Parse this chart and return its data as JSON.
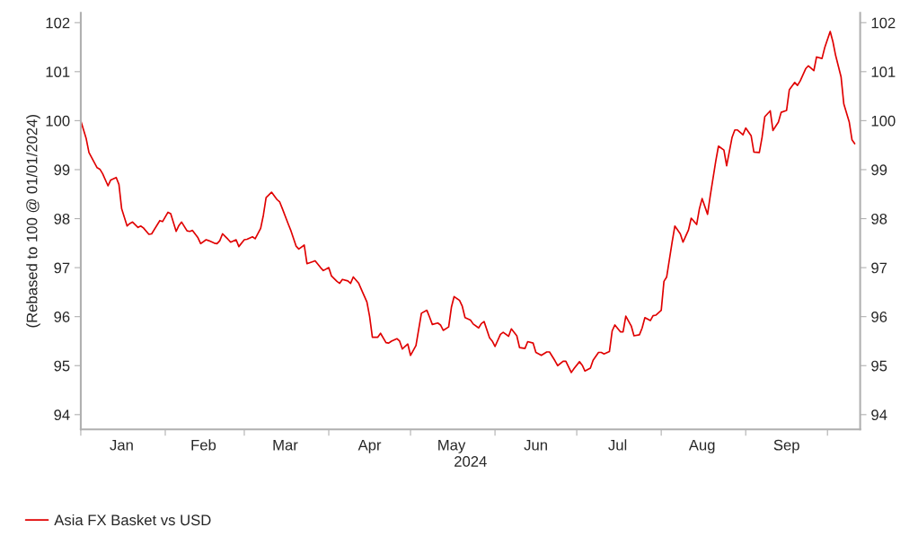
{
  "chart_data": {
    "type": "line",
    "xlabel": "2024",
    "ylabel": "(Rebased to 100 @ 01/01/2024)",
    "xlim": [
      "2024-01-01",
      "2024-10-13"
    ],
    "ylim": [
      93.7,
      102.2
    ],
    "yticks": [
      94,
      95,
      96,
      97,
      98,
      99,
      100,
      101,
      102
    ],
    "y2lim": [
      93.7,
      102.2
    ],
    "y2ticks": [
      94,
      95,
      96,
      97,
      98,
      99,
      100,
      101,
      102
    ],
    "xticks": [
      {
        "value": "2024-01-01",
        "label": null
      },
      {
        "value": "2024-01-16",
        "label": "Jan"
      },
      {
        "value": "2024-02-01",
        "label": null
      },
      {
        "value": "2024-02-15",
        "label": "Feb"
      },
      {
        "value": "2024-03-01",
        "label": null
      },
      {
        "value": "2024-03-16",
        "label": "Mar"
      },
      {
        "value": "2024-04-01",
        "label": null
      },
      {
        "value": "2024-04-16",
        "label": "Apr"
      },
      {
        "value": "2024-05-01",
        "label": null
      },
      {
        "value": "2024-05-16",
        "label": "May"
      },
      {
        "value": "2024-06-01",
        "label": null
      },
      {
        "value": "2024-06-16",
        "label": "Jun"
      },
      {
        "value": "2024-07-01",
        "label": null
      },
      {
        "value": "2024-07-16",
        "label": "Jul"
      },
      {
        "value": "2024-08-01",
        "label": null
      },
      {
        "value": "2024-08-16",
        "label": "Aug"
      },
      {
        "value": "2024-09-01",
        "label": null
      },
      {
        "value": "2024-09-16",
        "label": "Sep"
      },
      {
        "value": "2024-10-01",
        "label": null
      }
    ],
    "grid": false,
    "legend": "bottom left",
    "marker": "none",
    "line_style": "solid",
    "series": [
      {
        "name": "Asia FX Basket vs USD",
        "color": "#e00000",
        "x": [
          "2024-01-01",
          "2024-01-03",
          "2024-01-04",
          "2024-01-07",
          "2024-01-08",
          "2024-01-09",
          "2024-01-11",
          "2024-01-12",
          "2024-01-14",
          "2024-01-15",
          "2024-01-16",
          "2024-01-18",
          "2024-01-19",
          "2024-01-20",
          "2024-01-22",
          "2024-01-23",
          "2024-01-24",
          "2024-01-26",
          "2024-01-27",
          "2024-01-30",
          "2024-01-31",
          "2024-02-02",
          "2024-02-03",
          "2024-02-05",
          "2024-02-06",
          "2024-02-07",
          "2024-02-09",
          "2024-02-10",
          "2024-02-11",
          "2024-02-13",
          "2024-02-14",
          "2024-02-16",
          "2024-02-17",
          "2024-02-19",
          "2024-02-20",
          "2024-02-21",
          "2024-02-22",
          "2024-02-24",
          "2024-02-25",
          "2024-02-27",
          "2024-02-28",
          "2024-03-01",
          "2024-03-02",
          "2024-03-04",
          "2024-03-05",
          "2024-03-07",
          "2024-03-08",
          "2024-03-09",
          "2024-03-11",
          "2024-03-13",
          "2024-03-14",
          "2024-03-15",
          "2024-03-17",
          "2024-03-18",
          "2024-03-20",
          "2024-03-21",
          "2024-03-23",
          "2024-03-24",
          "2024-03-27",
          "2024-03-29",
          "2024-03-30",
          "2024-04-01",
          "2024-04-02",
          "2024-04-04",
          "2024-04-05",
          "2024-04-06",
          "2024-04-08",
          "2024-04-09",
          "2024-04-10",
          "2024-04-12",
          "2024-04-13",
          "2024-04-15",
          "2024-04-16",
          "2024-04-17",
          "2024-04-19",
          "2024-04-20",
          "2024-04-22",
          "2024-04-23",
          "2024-04-24",
          "2024-04-26",
          "2024-04-27",
          "2024-04-28",
          "2024-04-30",
          "2024-05-01",
          "2024-05-03",
          "2024-05-04",
          "2024-05-05",
          "2024-05-07",
          "2024-05-08",
          "2024-05-09",
          "2024-05-11",
          "2024-05-12",
          "2024-05-13",
          "2024-05-15",
          "2024-05-16",
          "2024-05-17",
          "2024-05-19",
          "2024-05-20",
          "2024-05-21",
          "2024-05-23",
          "2024-05-24",
          "2024-05-26",
          "2024-05-27",
          "2024-05-28",
          "2024-05-30",
          "2024-05-31",
          "2024-06-01",
          "2024-06-03",
          "2024-06-04",
          "2024-06-06",
          "2024-06-07",
          "2024-06-09",
          "2024-06-10",
          "2024-06-12",
          "2024-06-13",
          "2024-06-15",
          "2024-06-16",
          "2024-06-18",
          "2024-06-20",
          "2024-06-21",
          "2024-06-23",
          "2024-06-24",
          "2024-06-26",
          "2024-06-27",
          "2024-06-29",
          "2024-06-30",
          "2024-07-02",
          "2024-07-03",
          "2024-07-04",
          "2024-07-06",
          "2024-07-07",
          "2024-07-09",
          "2024-07-10",
          "2024-07-11",
          "2024-07-13",
          "2024-07-14",
          "2024-07-15",
          "2024-07-17",
          "2024-07-18",
          "2024-07-19",
          "2024-07-21",
          "2024-07-22",
          "2024-07-24",
          "2024-07-25",
          "2024-07-26",
          "2024-07-28",
          "2024-07-29",
          "2024-07-30",
          "2024-08-01",
          "2024-08-02",
          "2024-08-03",
          "2024-08-05",
          "2024-08-06",
          "2024-08-08",
          "2024-08-09",
          "2024-08-11",
          "2024-08-12",
          "2024-08-14",
          "2024-08-15",
          "2024-08-16",
          "2024-08-18",
          "2024-08-19",
          "2024-08-21",
          "2024-08-22",
          "2024-08-24",
          "2024-08-25",
          "2024-08-27",
          "2024-08-28",
          "2024-08-29",
          "2024-08-31",
          "2024-09-01",
          "2024-09-03",
          "2024-09-04",
          "2024-09-06",
          "2024-09-07",
          "2024-09-08",
          "2024-09-10",
          "2024-09-11",
          "2024-09-13",
          "2024-09-14",
          "2024-09-16",
          "2024-09-17",
          "2024-09-19",
          "2024-09-20",
          "2024-09-21",
          "2024-09-23",
          "2024-09-24",
          "2024-09-26",
          "2024-09-27",
          "2024-09-29",
          "2024-09-30",
          "2024-10-02",
          "2024-10-03",
          "2024-10-04",
          "2024-10-06",
          "2024-10-07",
          "2024-10-09",
          "2024-10-10",
          "2024-10-11"
        ],
        "values": [
          100.0,
          99.63,
          99.35,
          99.04,
          99.01,
          98.92,
          98.67,
          98.79,
          98.84,
          98.7,
          98.2,
          97.85,
          97.9,
          97.93,
          97.82,
          97.85,
          97.81,
          97.68,
          97.69,
          97.96,
          97.94,
          98.13,
          98.1,
          97.74,
          97.86,
          97.93,
          97.75,
          97.74,
          97.76,
          97.61,
          97.49,
          97.57,
          97.55,
          97.5,
          97.49,
          97.55,
          97.69,
          97.58,
          97.52,
          97.57,
          97.43,
          97.57,
          97.58,
          97.63,
          97.59,
          97.8,
          98.07,
          98.43,
          98.54,
          98.39,
          98.34,
          98.2,
          97.91,
          97.77,
          97.44,
          97.38,
          97.46,
          97.08,
          97.14,
          97.0,
          96.94,
          97.0,
          96.83,
          96.72,
          96.68,
          96.76,
          96.73,
          96.68,
          96.81,
          96.68,
          96.55,
          96.3,
          96.0,
          95.58,
          95.58,
          95.66,
          95.47,
          95.46,
          95.5,
          95.55,
          95.5,
          95.34,
          95.44,
          95.21,
          95.41,
          95.74,
          96.07,
          96.13,
          95.99,
          95.84,
          95.87,
          95.83,
          95.72,
          95.79,
          96.19,
          96.41,
          96.33,
          96.21,
          95.98,
          95.93,
          95.85,
          95.77,
          95.86,
          95.9,
          95.57,
          95.5,
          95.39,
          95.64,
          95.68,
          95.6,
          95.75,
          95.61,
          95.37,
          95.35,
          95.49,
          95.46,
          95.27,
          95.21,
          95.28,
          95.28,
          95.1,
          95.0,
          95.09,
          95.09,
          94.86,
          94.94,
          95.08,
          95.01,
          94.89,
          94.95,
          95.11,
          95.27,
          95.27,
          95.24,
          95.29,
          95.71,
          95.83,
          95.69,
          95.69,
          96.01,
          95.81,
          95.61,
          95.63,
          95.77,
          95.98,
          95.92,
          96.02,
          96.03,
          96.13,
          96.72,
          96.81,
          97.52,
          97.85,
          97.69,
          97.52,
          97.77,
          98.01,
          97.88,
          98.2,
          98.41,
          98.09,
          98.47,
          99.17,
          99.48,
          99.4,
          99.08,
          99.66,
          99.81,
          99.81,
          99.71,
          99.85,
          99.69,
          99.36,
          99.35,
          99.66,
          100.08,
          100.2,
          99.8,
          99.97,
          100.17,
          100.21,
          100.63,
          100.78,
          100.72,
          100.81,
          101.06,
          101.12,
          101.02,
          101.3,
          101.27,
          101.49,
          101.82,
          101.61,
          101.33,
          100.89,
          100.34,
          99.97,
          99.61,
          99.53
        ]
      }
    ]
  }
}
